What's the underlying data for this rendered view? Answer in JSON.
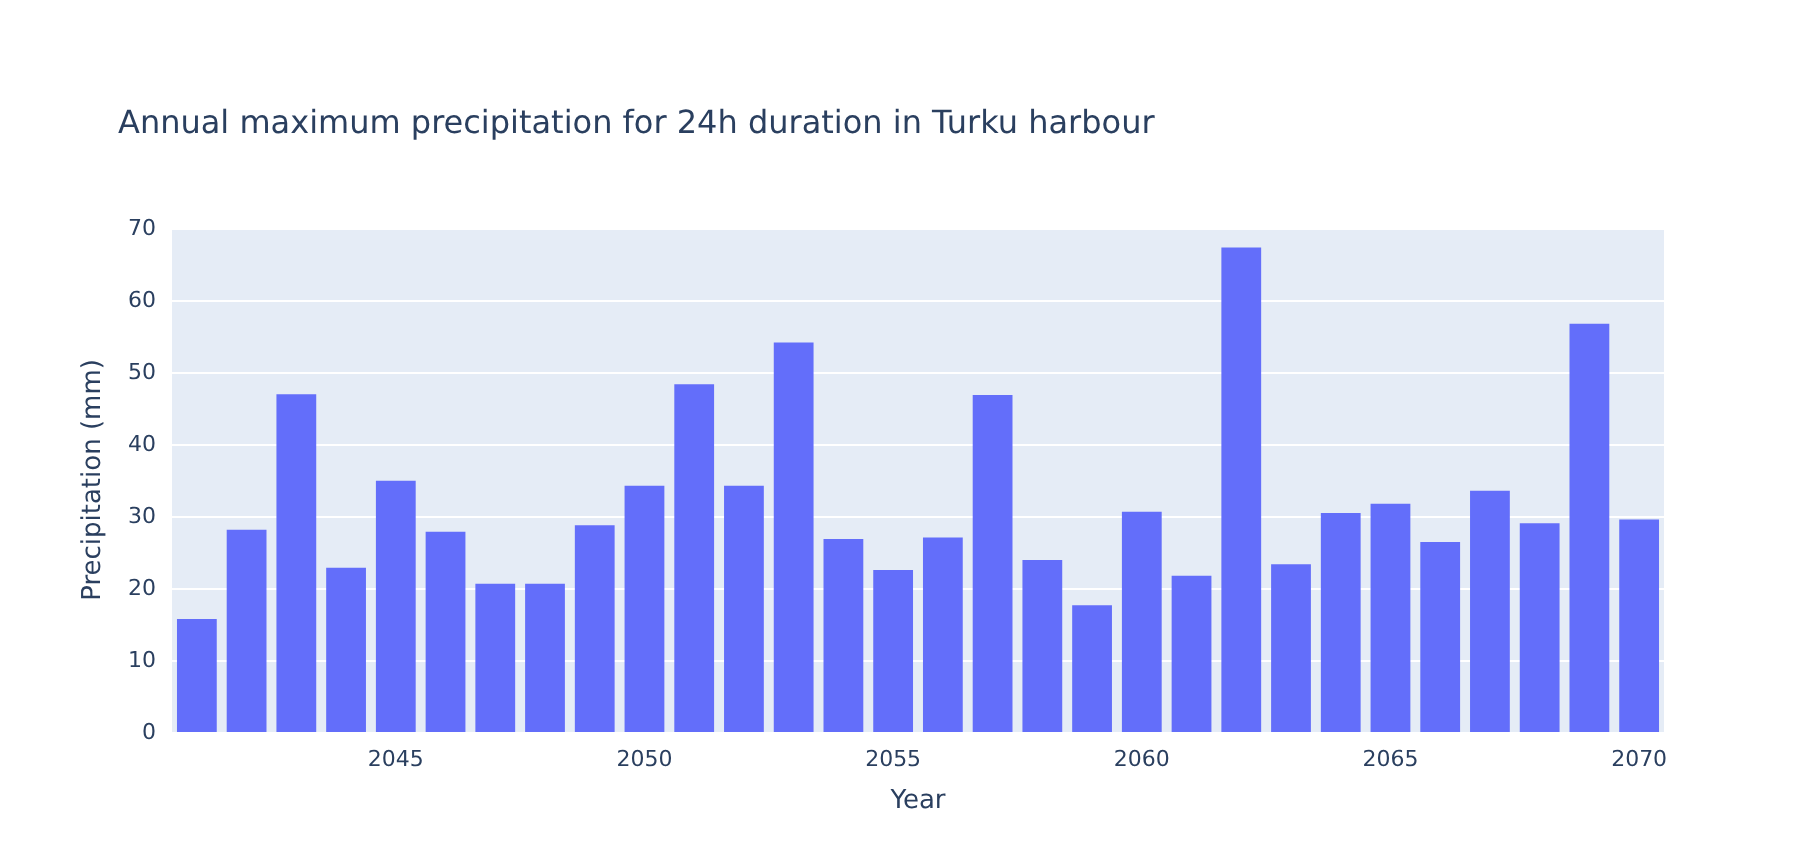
{
  "chart_data": {
    "type": "bar",
    "title": "Annual maximum precipitation for 24h duration in Turku harbour",
    "xlabel": "Year",
    "ylabel": "Precipitation (mm)",
    "x": [
      2041,
      2042,
      2043,
      2044,
      2045,
      2046,
      2047,
      2048,
      2049,
      2050,
      2051,
      2052,
      2053,
      2054,
      2055,
      2056,
      2057,
      2058,
      2059,
      2060,
      2061,
      2062,
      2063,
      2064,
      2065,
      2066,
      2067,
      2068,
      2069,
      2070
    ],
    "values": [
      15.7,
      28.1,
      46.9,
      22.8,
      34.9,
      27.8,
      20.6,
      20.6,
      28.7,
      34.2,
      48.3,
      34.2,
      54.1,
      26.8,
      22.5,
      27.0,
      46.8,
      23.9,
      17.6,
      30.6,
      21.7,
      67.3,
      23.3,
      30.4,
      31.7,
      26.4,
      33.5,
      29.0,
      56.7,
      29.5
    ],
    "color": "#636efa",
    "xlim": [
      2040.5,
      2070.5
    ],
    "xticks": [
      2045,
      2050,
      2055,
      2060,
      2065,
      2070
    ],
    "ylim": [
      0,
      70
    ],
    "yticks": [
      0,
      10,
      20,
      30,
      40,
      50,
      60,
      70
    ],
    "grid": "y"
  }
}
